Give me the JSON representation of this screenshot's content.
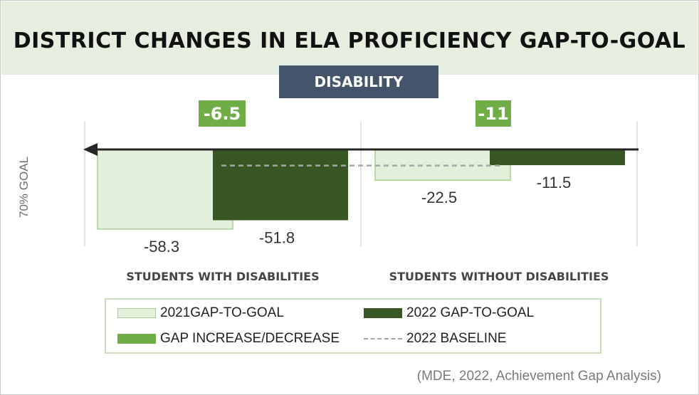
{
  "title": "DISTRICT CHANGES IN ELA PROFICIENCY GAP-TO-GOAL",
  "subgroup_label": "DISABILITY",
  "source": "(MDE, 2022, Achievement Gap Analysis)",
  "colors": {
    "gap2021_fill": "#e2efda",
    "gap2021_border": "#a9d08e",
    "gap2022": "#375623",
    "change_badge": "#70ad47",
    "baseline": "#a6a6a6",
    "arrow": "#262626",
    "subgroup_bg": "#44546a"
  },
  "chart_data": {
    "type": "bar",
    "title": "DISTRICT CHANGES IN ELA PROFICIENCY GAP-TO-GOAL",
    "ylabel": "70% GOAL",
    "categories": [
      "STUDENTS WITH DISABILITIES",
      "STUDENTS WITHOUT DISABILITIES"
    ],
    "series": [
      {
        "name": "2021GAP-TO-GOAL",
        "values": [
          -58.3,
          -22.5
        ]
      },
      {
        "name": "2022 GAP-TO-GOAL",
        "values": [
          -51.8,
          -11.5
        ]
      }
    ],
    "value_labels": {
      "gap2021": [
        "-58.3",
        "-22.5"
      ],
      "gap2022": [
        "-51.8",
        "-11.5"
      ]
    },
    "changes": [
      -6.5,
      -11
    ],
    "change_labels": [
      "-6.5",
      "-11"
    ],
    "baseline_2022": -11.5,
    "ylim": [
      -65,
      0
    ],
    "legend": [
      {
        "key": "gap2021",
        "label": "2021GAP-TO-GOAL"
      },
      {
        "key": "gap2022",
        "label": "2022 GAP-TO-GOAL"
      },
      {
        "key": "change",
        "label": "GAP INCREASE/DECREASE"
      },
      {
        "key": "baseline",
        "label": "2022 BASELINE"
      }
    ],
    "legend_position": "bottom"
  }
}
